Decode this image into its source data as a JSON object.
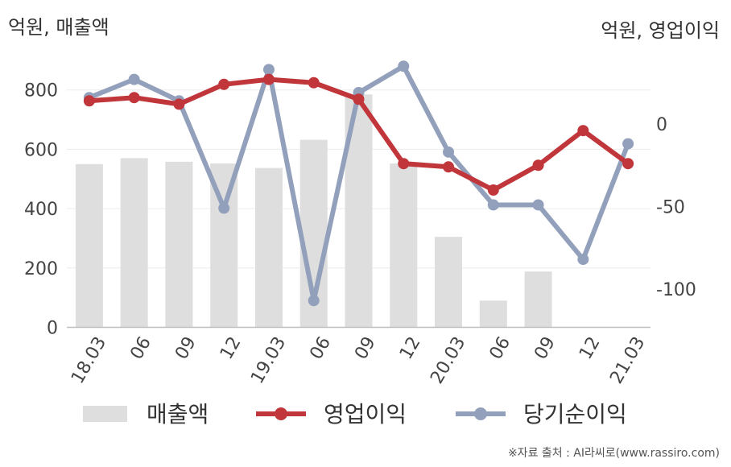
{
  "chart_data": {
    "type": "bar+line",
    "left_unit": "억원, 매출액",
    "right_unit": "억원, 영업이익",
    "categories": [
      "18.03",
      "06",
      "09",
      "12",
      "19.03",
      "06",
      "09",
      "12",
      "20.03",
      "06",
      "09",
      "12",
      "21.03"
    ],
    "left_axis": {
      "ticks": [
        0,
        200,
        400,
        600,
        800
      ],
      "range": [
        0,
        900
      ]
    },
    "right_axis": {
      "ticks": [
        0,
        -50,
        -100
      ],
      "range": [
        -124,
        50
      ]
    },
    "series": [
      {
        "name": "매출액",
        "type": "bar",
        "axis": "left",
        "color": "#dedede",
        "values": [
          550,
          570,
          558,
          552,
          537,
          632,
          785,
          552,
          305,
          90,
          188,
          null,
          null
        ]
      },
      {
        "name": "영업이익",
        "type": "line",
        "axis": "right",
        "color": "#c0363a",
        "values": [
          14,
          16,
          12,
          24,
          27,
          25,
          15,
          -24,
          -26,
          -40,
          -25,
          -4,
          -24
        ]
      },
      {
        "name": "당기순이익",
        "type": "line",
        "axis": "right",
        "color": "#93a0bb",
        "values": [
          16,
          27,
          14,
          -51,
          33,
          -107,
          19,
          35,
          -17,
          -49,
          -49,
          -82,
          -12
        ]
      }
    ],
    "grid": true,
    "legend_position": "bottom"
  },
  "source": "※자료 출처 : AI라씨로(www.rassiro.com)"
}
